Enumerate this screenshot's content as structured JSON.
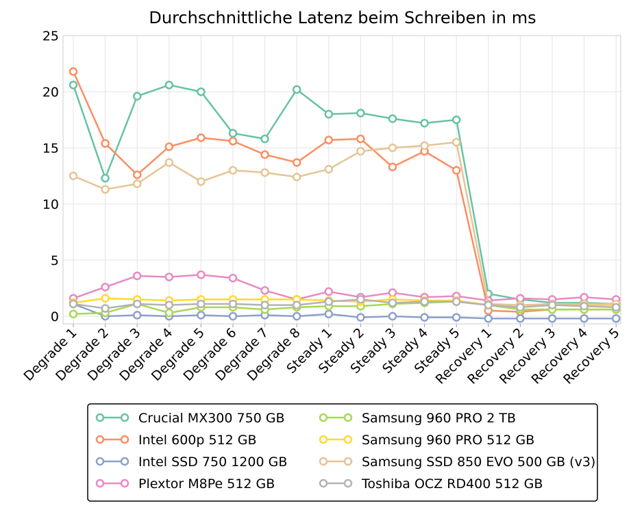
{
  "chart_data": {
    "type": "line",
    "title": "Durchschnittliche Latenz beim Schreiben in ms",
    "xlabel": "",
    "ylabel": "",
    "ylim": [
      0,
      25
    ],
    "yticks": [
      0,
      5,
      10,
      15,
      20,
      25
    ],
    "grid": true,
    "legend_position": "bottom",
    "categories": [
      "Degrade 1",
      "Degrade 2",
      "Degrade 3",
      "Degrade 4",
      "Degrade 5",
      "Degrade 6",
      "Degrade 7",
      "Degrade 8",
      "Steady 1",
      "Steady 2",
      "Steady 3",
      "Steady 4",
      "Steady 5",
      "Recovery 1",
      "Recovery 2",
      "Recovery 3",
      "Recovery 4",
      "Recovery 5"
    ],
    "series": [
      {
        "name": "Crucial MX300 750 GB",
        "color": "#66c2a5",
        "values": [
          20.6,
          12.3,
          19.6,
          20.6,
          20.0,
          16.3,
          15.8,
          20.2,
          18.0,
          18.1,
          17.6,
          17.2,
          17.5,
          2.0,
          1.5,
          1.2,
          1.2,
          1.1
        ]
      },
      {
        "name": "Intel 600p 512 GB",
        "color": "#fc8d62",
        "values": [
          21.8,
          15.4,
          12.6,
          15.1,
          15.9,
          15.6,
          14.4,
          13.7,
          15.7,
          15.8,
          13.3,
          14.7,
          13.0,
          0.5,
          0.4,
          0.6,
          0.6,
          0.6
        ]
      },
      {
        "name": "Intel SSD 750 1200 GB",
        "color": "#8da0cb",
        "values": [
          1.1,
          0.0,
          0.1,
          0.0,
          0.1,
          0.0,
          0.1,
          0.0,
          0.2,
          -0.1,
          0.0,
          -0.1,
          -0.1,
          -0.2,
          -0.2,
          -0.2,
          -0.2,
          -0.2
        ]
      },
      {
        "name": "Plextor M8Pe 512 GB",
        "color": "#e78ac3",
        "values": [
          1.6,
          2.6,
          3.6,
          3.5,
          3.7,
          3.4,
          2.3,
          1.5,
          2.2,
          1.7,
          2.1,
          1.7,
          1.8,
          1.4,
          1.6,
          1.5,
          1.7,
          1.5
        ]
      },
      {
        "name": "Samsung 960 PRO 2 TB",
        "color": "#a6d854",
        "values": [
          0.2,
          0.3,
          1.1,
          0.3,
          0.8,
          0.8,
          0.6,
          0.8,
          0.9,
          0.9,
          1.1,
          1.2,
          1.3,
          1.0,
          0.6,
          0.6,
          0.6,
          0.6
        ]
      },
      {
        "name": "Samsung 960 PRO 512 GB",
        "color": "#ffd92f",
        "values": [
          1.2,
          1.6,
          1.5,
          1.4,
          1.5,
          1.5,
          1.5,
          1.5,
          1.4,
          1.3,
          1.5,
          1.4,
          1.4,
          1.0,
          1.0,
          1.0,
          1.0,
          1.0
        ]
      },
      {
        "name": "Samsung SSD 850 EVO 500 GB (v3)",
        "color": "#e5c494",
        "values": [
          12.5,
          11.3,
          11.8,
          13.7,
          12.0,
          13.0,
          12.8,
          12.4,
          13.1,
          14.7,
          15.0,
          15.2,
          15.5,
          1.1,
          1.0,
          1.1,
          1.1,
          1.1
        ]
      },
      {
        "name": "Toshiba OCZ RD400 512 GB",
        "color": "#b3b3b3",
        "values": [
          1.1,
          0.7,
          1.1,
          1.0,
          1.1,
          1.1,
          1.0,
          1.0,
          1.3,
          1.5,
          1.2,
          1.3,
          1.3,
          1.0,
          0.8,
          1.0,
          0.9,
          0.8
        ]
      }
    ]
  }
}
